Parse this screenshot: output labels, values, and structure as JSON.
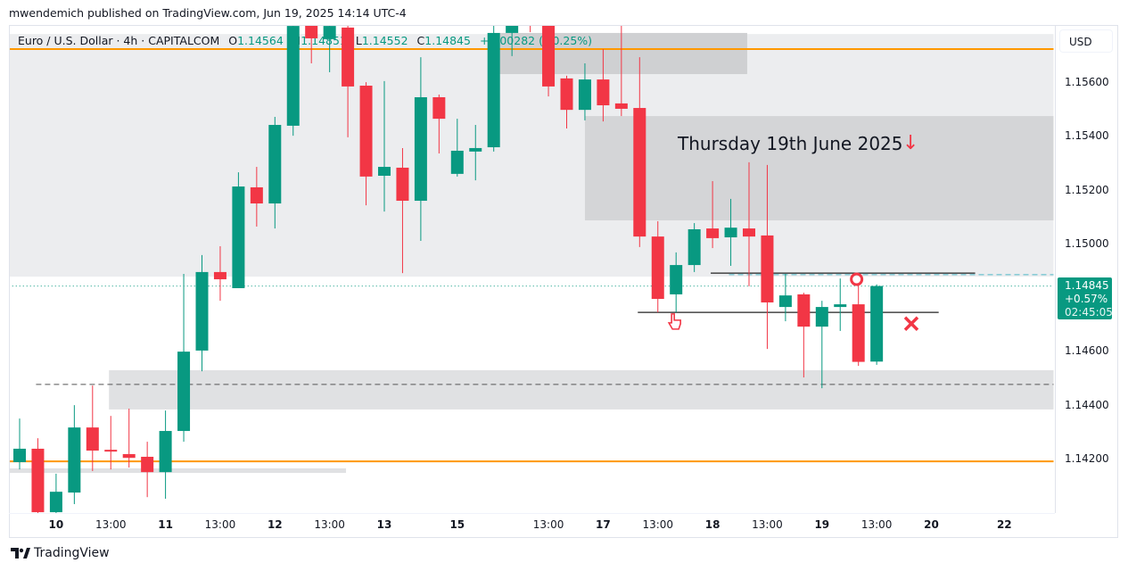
{
  "attribution": "mwendemich published on TradingView.com, Jun 19, 2025 14:14 UTC-4",
  "legend": {
    "symbol": "Euro / U.S. Dollar · 4h · CAPITALCOM",
    "o_label": "O",
    "o": "1.14564",
    "h_label": "H",
    "h": "1.14851",
    "l_label": "L",
    "l": "1.14552",
    "c_label": "C",
    "c": "1.14845",
    "change": "+0.00282 (+0.25%)"
  },
  "price_axis": {
    "currency_button": "USD",
    "last_price": "1.14845",
    "last_change_pct": "+0.57%",
    "countdown": "02:45:05"
  },
  "annotation_text": "Thursday 19th June 2025",
  "footer": {
    "brand": "TradingView"
  },
  "colors": {
    "up": "#089981",
    "down": "#f23645",
    "orange": "#ff9800",
    "zone_light": "#ecedef",
    "zone_dark": "#cfd0d2",
    "zone_mid": "#d4d5d7",
    "zone_low": "#e0e1e3"
  },
  "icons": {
    "logo": "tradingview-logo-icon",
    "arrow": "arrow-down-icon",
    "hand": "hand-pointer-icon",
    "circle": "circle-marker-icon",
    "cross": "x-marker-icon"
  },
  "chart_data": {
    "type": "candlestick",
    "title": "Euro / U.S. Dollar · 4h · CAPITALCOM",
    "ylim": [
      1.14001,
      1.15816
    ],
    "y_ticks": [
      "1.15600",
      "1.15400",
      "1.15200",
      "1.15000",
      "1.14600",
      "1.14400",
      "1.14200"
    ],
    "x_ticks": [
      {
        "label": "10",
        "index": 2,
        "day": true
      },
      {
        "label": "13:00",
        "index": 5,
        "day": false
      },
      {
        "label": "11",
        "index": 8,
        "day": true
      },
      {
        "label": "13:00",
        "index": 11,
        "day": false
      },
      {
        "label": "12",
        "index": 14,
        "day": true
      },
      {
        "label": "13:00",
        "index": 17,
        "day": false
      },
      {
        "label": "13",
        "index": 20,
        "day": true
      },
      {
        "label": "15",
        "index": 24,
        "day": true
      },
      {
        "label": "13:00",
        "index": 29,
        "day": false
      },
      {
        "label": "17",
        "index": 32,
        "day": true
      },
      {
        "label": "13:00",
        "index": 35,
        "day": false
      },
      {
        "label": "18",
        "index": 38,
        "day": true
      },
      {
        "label": "13:00",
        "index": 41,
        "day": false
      },
      {
        "label": "19",
        "index": 44,
        "day": true
      },
      {
        "label": "13:00",
        "index": 47,
        "day": false
      },
      {
        "label": "20",
        "index": 50,
        "day": true
      },
      {
        "label": "22",
        "index": 54,
        "day": true
      }
    ],
    "ohlc": [
      [
        1.1419,
        1.14352,
        1.14163,
        1.1424
      ],
      [
        1.1424,
        1.14279,
        1.14,
        1.14004
      ],
      [
        1.14004,
        1.14147,
        1.14,
        1.1408
      ],
      [
        1.14077,
        1.14402,
        1.14034,
        1.14319
      ],
      [
        1.14319,
        1.14475,
        1.14157,
        1.14233
      ],
      [
        1.14236,
        1.14362,
        1.14163,
        1.14233
      ],
      [
        1.1422,
        1.14389,
        1.1417,
        1.14206
      ],
      [
        1.1421,
        1.14266,
        1.1406,
        1.14153
      ],
      [
        1.14153,
        1.14382,
        1.14054,
        1.14306
      ],
      [
        1.14306,
        1.1489,
        1.14266,
        1.14601
      ],
      [
        1.14605,
        1.1496,
        1.14528,
        1.14897
      ],
      [
        1.14897,
        1.14993,
        1.1479,
        1.1487
      ],
      [
        1.14837,
        1.15268,
        1.14837,
        1.15215
      ],
      [
        1.15212,
        1.15288,
        1.15066,
        1.15152
      ],
      [
        1.15152,
        1.15474,
        1.15059,
        1.15444
      ],
      [
        1.15441,
        1.15842,
        1.15404,
        1.15812
      ],
      [
        1.15826,
        1.15859,
        1.15673,
        1.15766
      ],
      [
        1.15763,
        1.15859,
        1.1564,
        1.15812
      ],
      [
        1.15806,
        1.15826,
        1.15398,
        1.15587
      ],
      [
        1.1559,
        1.15603,
        1.15145,
        1.15252
      ],
      [
        1.15255,
        1.15607,
        1.15122,
        1.15288
      ],
      [
        1.15285,
        1.15358,
        1.14893,
        1.15162
      ],
      [
        1.15162,
        1.15696,
        1.15013,
        1.15547
      ],
      [
        1.15547,
        1.15557,
        1.15338,
        1.15467
      ],
      [
        1.15262,
        1.15467,
        1.15252,
        1.15348
      ],
      [
        1.15345,
        1.15444,
        1.15238,
        1.15358
      ],
      [
        1.15361,
        1.15842,
        1.15345,
        1.15786
      ],
      [
        1.15786,
        1.15892,
        1.157,
        1.15842
      ],
      [
        1.15892,
        1.15909,
        1.15789,
        1.15859
      ],
      [
        1.15816,
        1.15826,
        1.1555,
        1.15587
      ],
      [
        1.15617,
        1.15627,
        1.15431,
        1.155
      ],
      [
        1.155,
        1.15673,
        1.15461,
        1.15613
      ],
      [
        1.15613,
        1.15726,
        1.15457,
        1.15517
      ],
      [
        1.15524,
        1.15826,
        1.15477,
        1.15504
      ],
      [
        1.15507,
        1.15696,
        1.1499,
        1.15029
      ],
      [
        1.15029,
        1.15086,
        1.14747,
        1.14797
      ],
      [
        1.14814,
        1.1497,
        1.14747,
        1.14923
      ],
      [
        1.14923,
        1.15079,
        1.14897,
        1.15056
      ],
      [
        1.15059,
        1.15235,
        1.14986,
        1.15023
      ],
      [
        1.15026,
        1.15169,
        1.1492,
        1.15062
      ],
      [
        1.15059,
        1.15305,
        1.14844,
        1.15029
      ],
      [
        1.15033,
        1.15295,
        1.14611,
        1.14784
      ],
      [
        1.14767,
        1.1489,
        1.14714,
        1.1481
      ],
      [
        1.14814,
        1.1482,
        1.14505,
        1.14694
      ],
      [
        1.14694,
        1.1479,
        1.14465,
        1.14767
      ],
      [
        1.14767,
        1.14873,
        1.14678,
        1.14777
      ],
      [
        1.14777,
        1.14847,
        1.14548,
        1.14563
      ],
      [
        1.14564,
        1.14851,
        1.14552,
        1.14845
      ]
    ],
    "zones": [
      {
        "name": "upper-supply-zone",
        "from": -0.6,
        "to": 56.7,
        "top": 1.15782,
        "bottom": 1.1488,
        "color": "zone_light"
      },
      {
        "name": "top-box-zone",
        "from": 26.3,
        "to": 39.9,
        "top": 1.15786,
        "bottom": 1.15633,
        "color": "zone_dark"
      },
      {
        "name": "thursday-box-zone",
        "from": 31,
        "to": 56.7,
        "top": 1.15477,
        "bottom": 1.15089,
        "color": "zone_mid"
      },
      {
        "name": "lower-demand-zone",
        "from": 4.9,
        "to": 56.7,
        "top": 1.14532,
        "bottom": 1.14386,
        "color": "zone_low"
      },
      {
        "name": "bottom-thin-zone",
        "from": -0.6,
        "to": 17.9,
        "top": 1.14167,
        "bottom": 1.1415,
        "color": "zone_low"
      }
    ],
    "lines": [
      {
        "name": "orange-level-top",
        "price": 1.15726,
        "from": -0.6,
        "to": 56.7,
        "color": "#ff9800",
        "dash": "",
        "width": 2
      },
      {
        "name": "orange-level-bottom",
        "price": 1.14193,
        "from": -0.6,
        "to": 56.7,
        "color": "#ff9800",
        "dash": "",
        "width": 2
      },
      {
        "name": "dashed-level",
        "price": 1.14479,
        "from": 0.9,
        "to": 56.7,
        "color": "#555",
        "dash": "6,4",
        "width": 1
      },
      {
        "name": "resistance-line",
        "price": 1.14893,
        "from": 37.9,
        "to": 52.4,
        "color": "#222",
        "dash": "",
        "width": 1.3
      },
      {
        "name": "teal-dashed-level",
        "price": 1.14887,
        "from": 38.9,
        "to": 56.7,
        "color": "#4fb8c6",
        "dash": "6,4",
        "width": 1
      },
      {
        "name": "support-line",
        "price": 1.14747,
        "from": 33.9,
        "to": 50.4,
        "color": "#222",
        "dash": "",
        "width": 1.3
      },
      {
        "name": "current-price-line",
        "price": 1.14845,
        "from": -0.6,
        "to": 56.7,
        "color": "#089981",
        "dash": "1,3",
        "width": 1
      }
    ],
    "markers": [
      {
        "name": "circle-marker-icon",
        "index": 45.9,
        "price": 1.1487
      },
      {
        "name": "x-marker-icon",
        "index": 48.9,
        "price": 1.14705
      },
      {
        "name": "hand-pointer-icon",
        "index": 35.9,
        "price": 1.14708
      }
    ]
  }
}
